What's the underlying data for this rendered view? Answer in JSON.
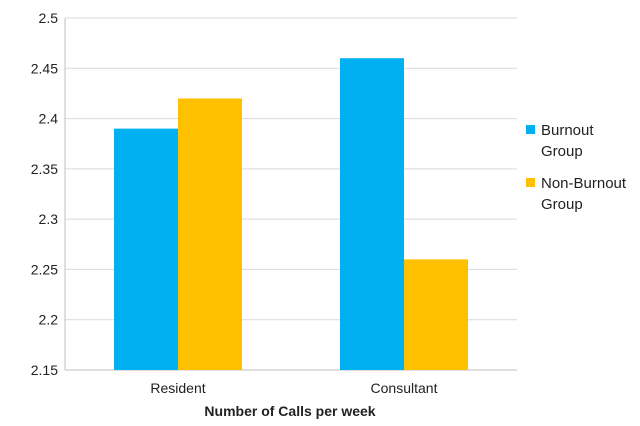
{
  "chart_data": {
    "type": "bar",
    "categories": [
      "Resident",
      "Consultant"
    ],
    "series": [
      {
        "name": "Burnout Group",
        "values": [
          2.39,
          2.46
        ],
        "color": "#00B0F0"
      },
      {
        "name": "Non-Burnout Group",
        "values": [
          2.42,
          2.26
        ],
        "color": "#FFC000"
      }
    ],
    "xlabel": "Number of Calls per week",
    "ylabel": "",
    "ylim": [
      2.15,
      2.5
    ],
    "yticks": [
      "2.15",
      "2.2",
      "2.25",
      "2.3",
      "2.35",
      "2.4",
      "2.45",
      "2.5"
    ],
    "grid": true,
    "legend_position": "right",
    "legend_lines": [
      [
        "Burnout",
        "Group"
      ],
      [
        "Non-Burnout",
        "Group"
      ]
    ]
  }
}
